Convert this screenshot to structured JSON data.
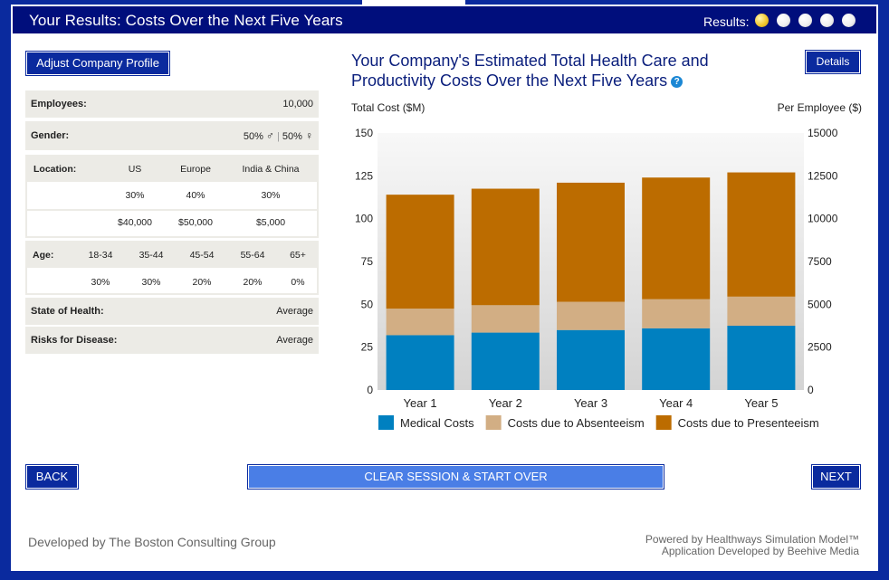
{
  "header": {
    "title": "Your Results: Costs Over the Next Five Years",
    "results_label": "Results:",
    "steps": 5,
    "active_step": 1
  },
  "profile": {
    "adjust_button": "Adjust Company Profile",
    "employees": {
      "label": "Employees:",
      "value": "10,000"
    },
    "gender": {
      "label": "Gender:",
      "male": "50%",
      "female": "50%",
      "male_symbol": "♂",
      "female_symbol": "♀"
    },
    "location": {
      "label": "Location:",
      "columns": [
        "US",
        "Europe",
        "India & China"
      ],
      "percent": [
        "30%",
        "40%",
        "30%"
      ],
      "salary": [
        "$40,000",
        "$50,000",
        "$5,000"
      ]
    },
    "age": {
      "label": "Age:",
      "columns": [
        "18-34",
        "35-44",
        "45-54",
        "55-64",
        "65+"
      ],
      "percent": [
        "30%",
        "30%",
        "20%",
        "20%",
        "0%"
      ]
    },
    "health": {
      "label": "State of Health:",
      "value": "Average"
    },
    "risks": {
      "label": "Risks for Disease:",
      "value": "Average"
    }
  },
  "chart": {
    "title_line1": "Your Company's Estimated Total Health Care and",
    "title_line2": "Productivity Costs Over the Next Five Years",
    "help_icon": "?",
    "details_button": "Details",
    "left_axis_title": "Total Cost ($M)",
    "right_axis_title": "Per Employee ($)"
  },
  "chart_data": {
    "type": "bar",
    "stacked": true,
    "categories": [
      "Year 1",
      "Year 2",
      "Year 3",
      "Year 4",
      "Year 5"
    ],
    "series": [
      {
        "name": "Medical Costs",
        "color": "#0080c0",
        "values": [
          32,
          33.5,
          35,
          36,
          37.5
        ]
      },
      {
        "name": "Costs due to Absenteeism",
        "color": "#d2ae84",
        "values": [
          15.5,
          16,
          16.5,
          17,
          17
        ]
      },
      {
        "name": "Costs due to Presenteeism",
        "color": "#bc6c00",
        "values": [
          66.5,
          68,
          69.5,
          71,
          72.5
        ]
      }
    ],
    "ylim": [
      0,
      150
    ],
    "yticks": [
      "0",
      "25",
      "50",
      "75",
      "100",
      "125",
      "150"
    ],
    "y2ticks": [
      "0",
      "2500",
      "5000",
      "7500",
      "10000",
      "12500",
      "15000"
    ],
    "ylabel": "Total Cost ($M)",
    "y2label": "Per Employee ($)",
    "legend": "bottom"
  },
  "nav": {
    "back": "BACK",
    "clear": "CLEAR SESSION & START OVER",
    "next": "NEXT"
  },
  "footer": {
    "left": "Developed by The Boston Consulting Group",
    "right_line1": "Powered by Healthways Simulation Model™",
    "right_line2": "Application Developed by Beehive Media"
  }
}
